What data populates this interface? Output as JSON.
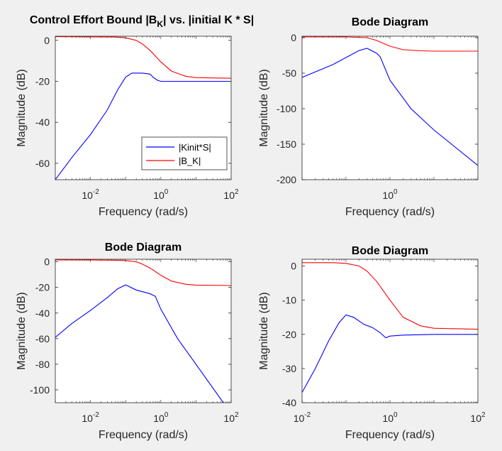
{
  "colors": {
    "background": "#f0f0f0",
    "axes_background": "#ffffff",
    "axis_text": "#262626",
    "series_kinit": "#0000ff",
    "series_bk": "#ff0000"
  },
  "chart_data": [
    {
      "type": "line",
      "title": "Control Effort Bound |B_K| vs. |initial K * S|",
      "title_parts": {
        "pre": "Control Effort Bound |B",
        "sub": "K",
        "post": "| vs. |initial K * S|"
      },
      "xlabel": "Frequency  (rad/s)",
      "ylabel": "Magnitude (dB)",
      "xscale": "log",
      "xlim": [
        0.001,
        100
      ],
      "ylim": [
        -68,
        2
      ],
      "xticks": [
        {
          "value": 0.01,
          "base": "10",
          "exp": "-2"
        },
        {
          "value": 1,
          "base": "10",
          "exp": "0"
        },
        {
          "value": 100,
          "base": "10",
          "exp": "2"
        }
      ],
      "yticks": [
        {
          "value": 0,
          "label": "0"
        },
        {
          "value": -20,
          "label": "-20"
        },
        {
          "value": -40,
          "label": "-40"
        },
        {
          "value": -60,
          "label": "-60"
        }
      ],
      "legend": {
        "position": "bottom-right",
        "entries": [
          "|Kinit*S|",
          "|B_K|"
        ]
      },
      "series": [
        {
          "name": "|Kinit*S|",
          "color": "#0000ff",
          "x": [
            0.001,
            0.003,
            0.01,
            0.03,
            0.06,
            0.1,
            0.15,
            0.3,
            0.5,
            0.6,
            0.8,
            1,
            2,
            10,
            100
          ],
          "y": [
            -68,
            -57,
            -46,
            -34,
            -24,
            -18,
            -16,
            -16,
            -16.5,
            -18,
            -19.5,
            -20,
            -20,
            -20,
            -20
          ]
        },
        {
          "name": "|B_K|",
          "color": "#ff0000",
          "x": [
            0.001,
            0.01,
            0.05,
            0.1,
            0.2,
            0.3,
            0.5,
            1,
            2,
            5,
            10,
            100
          ],
          "y": [
            1.8,
            1.7,
            1.6,
            1.2,
            0,
            -1.8,
            -5,
            -10.5,
            -15,
            -17.5,
            -18.2,
            -18.5
          ]
        }
      ]
    },
    {
      "type": "line",
      "title": "Bode Diagram",
      "xlabel": "Frequency  (rad/s)",
      "ylabel": "Magnitude (dB)",
      "xscale": "log",
      "xlim": [
        0.01,
        100
      ],
      "ylim": [
        -200,
        2
      ],
      "xticks": [
        {
          "value": 1,
          "base": "10",
          "exp": "0"
        }
      ],
      "yticks": [
        {
          "value": 0,
          "label": "0"
        },
        {
          "value": -50,
          "label": "-50"
        },
        {
          "value": -100,
          "label": "-100"
        },
        {
          "value": -150,
          "label": "-150"
        },
        {
          "value": -200,
          "label": "-200"
        }
      ],
      "series": [
        {
          "name": "",
          "color": "#0000ff",
          "x": [
            0.01,
            0.05,
            0.1,
            0.2,
            0.3,
            0.5,
            0.6,
            1,
            3,
            10,
            100
          ],
          "y": [
            -56,
            -38,
            -28,
            -18,
            -15,
            -22,
            -27,
            -60,
            -100,
            -130,
            -180
          ]
        },
        {
          "name": "",
          "color": "#ff0000",
          "x": [
            0.01,
            0.1,
            0.3,
            0.5,
            1,
            2,
            5,
            10,
            100
          ],
          "y": [
            1,
            1,
            0,
            -4,
            -12,
            -17,
            -18.5,
            -19,
            -19
          ]
        }
      ]
    },
    {
      "type": "line",
      "title": "Bode Diagram",
      "xlabel": "Frequency  (rad/s)",
      "ylabel": "Magnitude (dB)",
      "xscale": "log",
      "xlim": [
        0.001,
        100
      ],
      "ylim": [
        -110,
        2
      ],
      "xticks": [
        {
          "value": 0.01,
          "base": "10",
          "exp": "-2"
        },
        {
          "value": 1,
          "base": "10",
          "exp": "0"
        },
        {
          "value": 100,
          "base": "10",
          "exp": "2"
        }
      ],
      "yticks": [
        {
          "value": 0,
          "label": "0"
        },
        {
          "value": -20,
          "label": "-20"
        },
        {
          "value": -40,
          "label": "-40"
        },
        {
          "value": -60,
          "label": "-60"
        },
        {
          "value": -80,
          "label": "-80"
        },
        {
          "value": -100,
          "label": "-100"
        }
      ],
      "series": [
        {
          "name": "",
          "color": "#0000ff",
          "x": [
            0.001,
            0.003,
            0.01,
            0.03,
            0.06,
            0.1,
            0.2,
            0.5,
            0.7,
            1,
            3,
            10,
            60
          ],
          "y": [
            -59,
            -48,
            -38,
            -28,
            -21,
            -18,
            -22,
            -25,
            -27,
            -37,
            -60,
            -80,
            -110
          ]
        },
        {
          "name": "",
          "color": "#ff0000",
          "x": [
            0.001,
            0.01,
            0.05,
            0.1,
            0.2,
            0.3,
            0.5,
            1,
            2,
            5,
            10,
            100
          ],
          "y": [
            1.5,
            1.4,
            1.2,
            1,
            0,
            -1.8,
            -5,
            -10.5,
            -15,
            -17.5,
            -18.2,
            -18.5
          ]
        }
      ]
    },
    {
      "type": "line",
      "title": "Bode Diagram",
      "xlabel": "Frequency  (rad/s)",
      "ylabel": "Magnitude (dB)",
      "xscale": "log",
      "xlim": [
        0.01,
        100
      ],
      "ylim": [
        -40,
        2
      ],
      "xticks": [
        {
          "value": 0.01,
          "base": "10",
          "exp": "-2"
        },
        {
          "value": 1,
          "base": "10",
          "exp": "0"
        },
        {
          "value": 100,
          "base": "10",
          "exp": "2"
        }
      ],
      "yticks": [
        {
          "value": 0,
          "label": "0"
        },
        {
          "value": -10,
          "label": "-10"
        },
        {
          "value": -20,
          "label": "-20"
        },
        {
          "value": -30,
          "label": "-30"
        },
        {
          "value": -40,
          "label": "-40"
        }
      ],
      "series": [
        {
          "name": "",
          "color": "#0000ff",
          "x": [
            0.01,
            0.02,
            0.04,
            0.07,
            0.1,
            0.15,
            0.25,
            0.4,
            0.6,
            0.8,
            1,
            2,
            10,
            100
          ],
          "y": [
            -37,
            -30,
            -22,
            -16.5,
            -14.3,
            -15,
            -17,
            -18,
            -19.5,
            -21,
            -20.5,
            -20.2,
            -20,
            -20
          ]
        },
        {
          "name": "",
          "color": "#ff0000",
          "x": [
            0.01,
            0.05,
            0.1,
            0.2,
            0.3,
            0.5,
            1,
            2,
            5,
            10,
            100
          ],
          "y": [
            1,
            1,
            0.8,
            0,
            -1.5,
            -4.5,
            -10,
            -15,
            -17.5,
            -18.2,
            -18.5
          ]
        }
      ]
    }
  ]
}
